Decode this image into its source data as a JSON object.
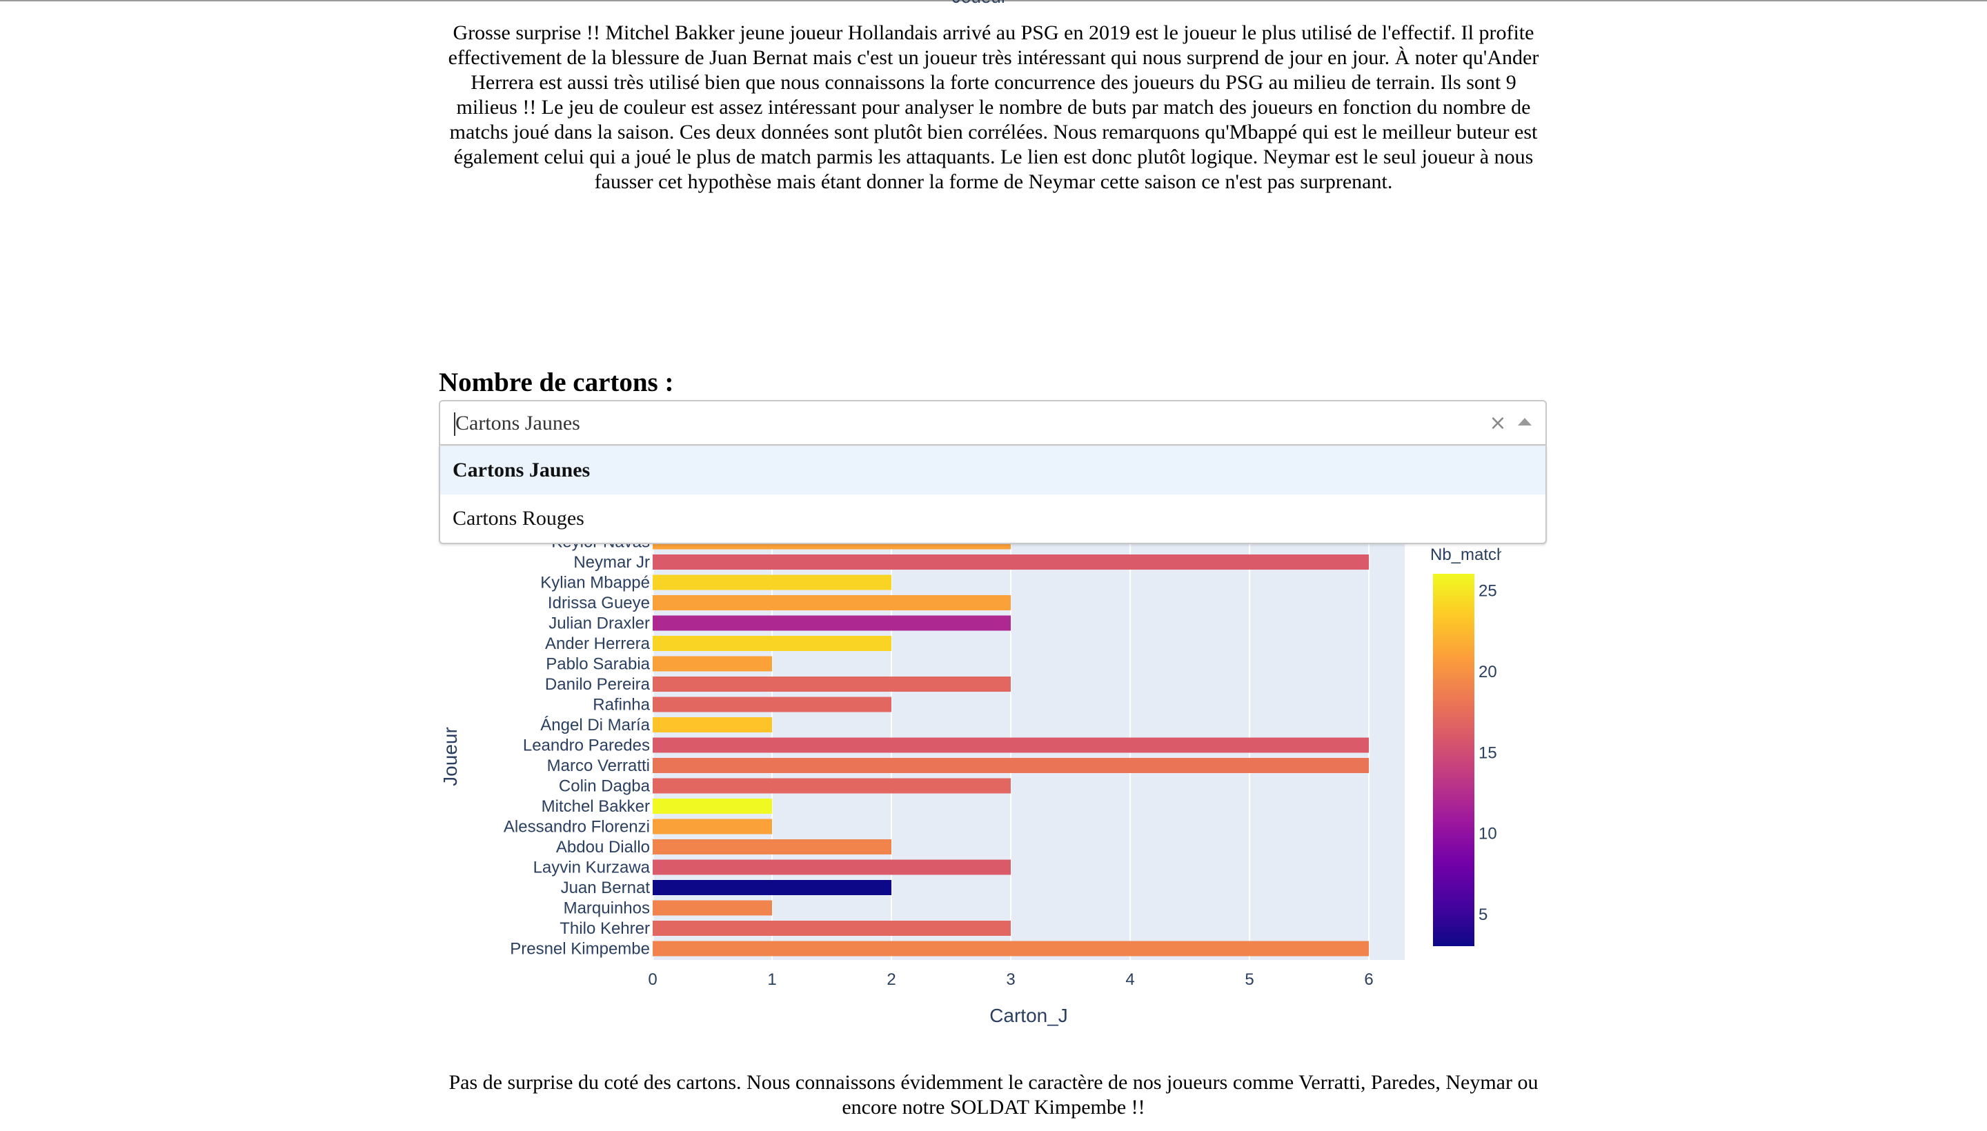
{
  "top_cut_label": "Joueur",
  "paragraph_1": "Grosse surprise !! Mitchel Bakker jeune joueur Hollandais arrivé au PSG en 2019 est le joueur le plus utilisé de l'effectif. Il profite effectivement de la blessure de Juan Bernat mais c'est un joueur très intéressant qui nous surprend de jour en jour. À noter qu'Ander Herrera est aussi très utilisé bien que nous connaissons la forte concurrence des joueurs du PSG au milieu de terrain. Ils sont 9 milieus !! Le jeu de couleur est assez intéressant pour analyser le nombre de buts par match des joueurs en fonction du nombre de matchs joué dans la saison. Ces deux données sont plutôt bien corrélées. Nous remarquons qu'Mbappé qui est le meilleur buteur est également celui qui a joué le plus de match parmis les attaquants. Le lien est donc plutôt logique. Neymar est le seul joueur à nous fausser cet hypothèse mais étant donner la forme de Neymar cette saison ce n'est pas surprenant.",
  "section_title": "Nombre de cartons :",
  "dropdown": {
    "value": "Cartons Jaunes",
    "clear_symbol": "×",
    "options": [
      "Cartons Jaunes",
      "Cartons Rouges"
    ],
    "selected_index": 0
  },
  "paragraph_2": "Pas de surprise du coté des cartons. Nous connaissons évidemment le caractère de nos joueurs comme Verratti, Paredes, Neymar ou encore notre SOLDAT Kimpembe !!",
  "chart_data": {
    "type": "bar",
    "orientation": "horizontal",
    "xlabel": "Carton_J",
    "ylabel": "Joueur",
    "xlim": [
      0,
      6.3
    ],
    "xticks": [
      0,
      1,
      2,
      3,
      4,
      5,
      6
    ],
    "grid": true,
    "colorbar": {
      "title": "Nb_match",
      "range": [
        3,
        26
      ],
      "ticks": [
        5,
        10,
        15,
        20,
        25
      ],
      "colorscale": [
        "#0d0887",
        "#46039f",
        "#7201a8",
        "#9c179e",
        "#bd3786",
        "#d8576b",
        "#ed7953",
        "#fb9f3a",
        "#fdca26",
        "#f0f921"
      ]
    },
    "partial_top_label": "Keylor Navas",
    "partial_top_value": 3,
    "partial_top_nb_match": 21,
    "categories": [
      "Neymar Jr",
      "Kylian Mbappé",
      "Idrissa Gueye",
      "Julian Draxler",
      "Ander Herrera",
      "Pablo Sarabia",
      "Danilo Pereira",
      "Rafinha",
      "Ángel Di María",
      "Leandro Paredes",
      "Marco Verratti",
      "Colin Dagba",
      "Mitchel Bakker",
      "Alessandro Florenzi",
      "Abdou Diallo",
      "Layvin Kurzawa",
      "Juan Bernat",
      "Marquinhos",
      "Thilo Kehrer",
      "Presnel Kimpembe"
    ],
    "values": [
      6,
      2,
      3,
      3,
      2,
      1,
      3,
      2,
      1,
      6,
      6,
      3,
      1,
      1,
      2,
      3,
      2,
      1,
      3,
      6
    ],
    "nb_match": [
      16,
      24,
      21,
      12,
      24,
      21,
      17,
      17,
      23,
      16,
      18,
      17,
      26,
      21,
      19,
      16,
      3,
      19,
      17,
      19
    ]
  }
}
